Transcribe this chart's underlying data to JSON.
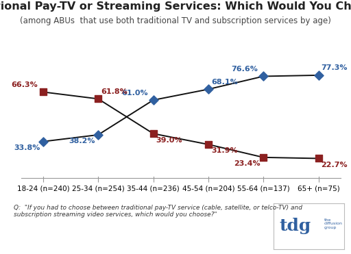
{
  "title": "Traditional Pay-TV or Streaming Services: Which Would You Choose?",
  "subtitle": "(among ABUs  that use both traditional TV and subscription services by age)",
  "categories": [
    "18-24 (n=240)",
    "25-34 (n=254)",
    "35-44 (n=236)",
    "45-54 (n=204)",
    "55-64 (n=137)",
    "65+ (n=75)"
  ],
  "streaming_values": [
    33.8,
    38.2,
    61.0,
    68.1,
    76.6,
    77.3
  ],
  "paytv_values": [
    66.3,
    61.8,
    39.0,
    31.9,
    23.4,
    22.7
  ],
  "streaming_labels": [
    "33.8%",
    "38.2%",
    "61.0%",
    "68.1%",
    "76.6%",
    "77.3%"
  ],
  "paytv_labels": [
    "66.3%",
    "61.8%",
    "39.0%",
    "31.9%",
    "23.4%",
    "22.7%"
  ],
  "streaming_color": "#3060a0",
  "paytv_color": "#8b2020",
  "line_color": "#111111",
  "background_color": "#ffffff",
  "footer_text": "Q:  \"If you had to choose between traditional pay-TV service (cable, satellite, or telco-TV) and\nsubscription streaming video services, which would you choose?\"",
  "ylim": [
    10,
    90
  ],
  "title_fontsize": 11.5,
  "subtitle_fontsize": 8.5,
  "label_fontsize": 8,
  "axis_fontsize": 7.5
}
